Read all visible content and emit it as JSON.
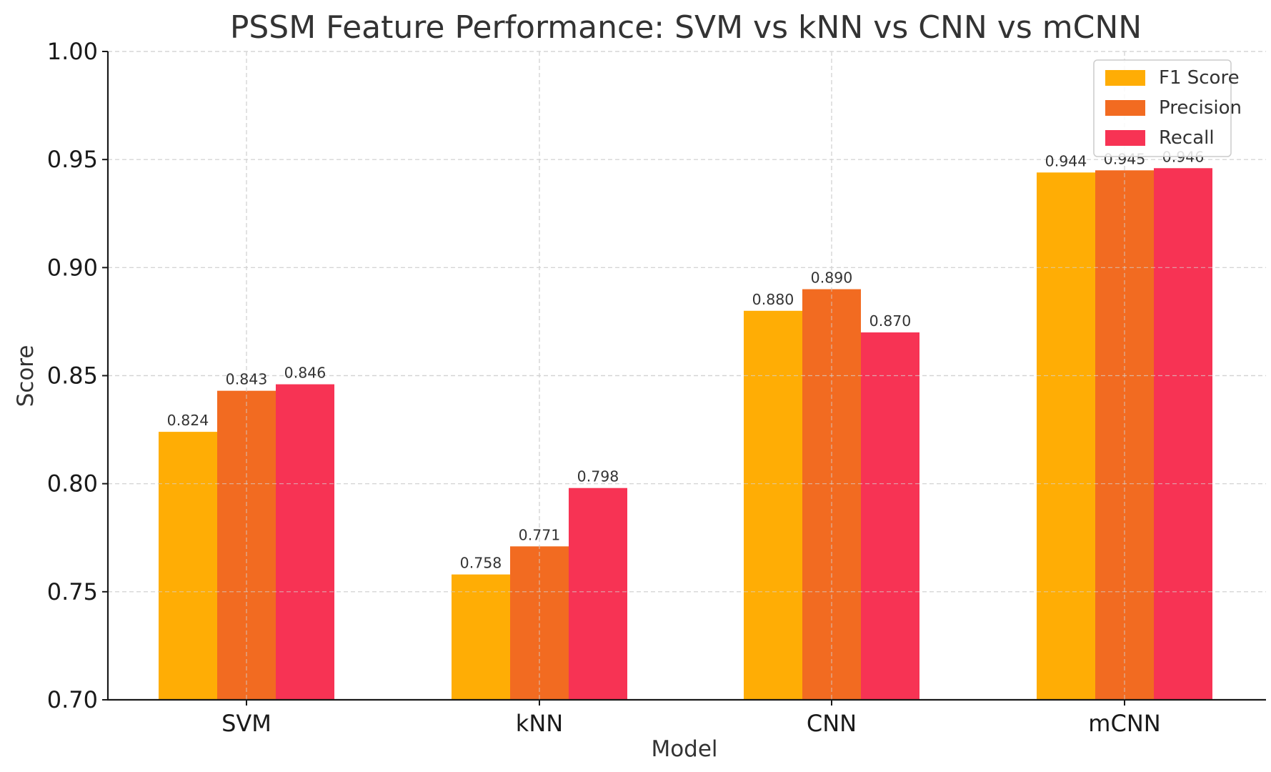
{
  "chart_data": {
    "type": "bar",
    "title": "PSSM Feature Performance: SVM vs kNN vs CNN vs mCNN",
    "xlabel": "Model",
    "ylabel": "Score",
    "categories": [
      "SVM",
      "kNN",
      "CNN",
      "mCNN"
    ],
    "series": [
      {
        "name": "F1 Score",
        "color": "#FFAD05",
        "values": [
          0.824,
          0.758,
          0.88,
          0.944
        ],
        "labels": [
          "0.824",
          "0.758",
          "0.880",
          "0.944"
        ]
      },
      {
        "name": "Precision",
        "color": "#F26B21",
        "values": [
          0.843,
          0.771,
          0.89,
          0.945
        ],
        "labels": [
          "0.843",
          "0.771",
          "0.890",
          "0.945"
        ]
      },
      {
        "name": "Recall",
        "color": "#F73354",
        "values": [
          0.846,
          0.798,
          0.87,
          0.946
        ],
        "labels": [
          "0.846",
          "0.798",
          "0.870",
          "0.946"
        ]
      }
    ],
    "ylim": [
      0.7,
      1.0
    ],
    "yticks": [
      0.7,
      0.75,
      0.8,
      0.85,
      0.9,
      0.95,
      1.0
    ],
    "ytick_labels": [
      "0.70",
      "0.75",
      "0.80",
      "0.85",
      "0.90",
      "0.95",
      "1.00"
    ],
    "grid": true,
    "legend_position": "top-right"
  }
}
